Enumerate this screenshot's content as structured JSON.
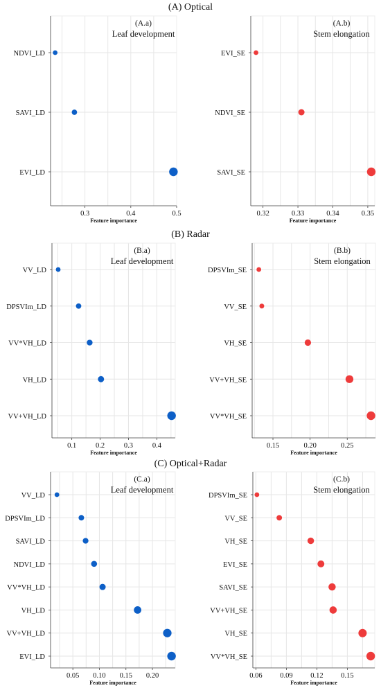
{
  "sections": [
    {
      "title": "(A) Optical"
    },
    {
      "title": "(B) Radar"
    },
    {
      "title": "(C) Optical+Radar"
    }
  ],
  "colors": {
    "leaf": "#0d5fc7",
    "stem": "#ee3b3b",
    "grid": "#e6e6e6"
  },
  "chart_data": [
    {
      "type": "scatter",
      "panel": "(A.a)",
      "title": "Leaf development",
      "xlabel": "Feature importance",
      "ylabel": "",
      "xlim": [
        0.225,
        0.5
      ],
      "xticks": [
        0.3,
        0.4,
        0.5
      ],
      "xtick_labels": [
        "0.3",
        "0.4",
        "0.5"
      ],
      "grid": true,
      "color": "leaf",
      "categories": [
        "NDVI_LD",
        "SAVI_LD",
        "EVI_LD"
      ],
      "values": [
        0.235,
        0.277,
        0.493
      ]
    },
    {
      "type": "scatter",
      "panel": "(A.b)",
      "title": "Stem elongation",
      "xlabel": "Feature importance",
      "ylabel": "",
      "xlim": [
        0.3165,
        0.352
      ],
      "xticks": [
        0.32,
        0.33,
        0.34,
        0.35
      ],
      "xtick_labels": [
        "0.32",
        "0.33",
        "0.34",
        "0.35"
      ],
      "grid": true,
      "color": "stem",
      "categories": [
        "EVI_SE",
        "NDVI_SE",
        "SAVI_SE"
      ],
      "values": [
        0.318,
        0.331,
        0.351
      ]
    },
    {
      "type": "scatter",
      "panel": "(B.a)",
      "title": "Leaf development",
      "xlabel": "Feature importance",
      "ylabel": "",
      "xlim": [
        0.03,
        0.465
      ],
      "xticks": [
        0.1,
        0.2,
        0.3,
        0.4
      ],
      "xtick_labels": [
        "0.1",
        "0.2",
        "0.3",
        "0.4"
      ],
      "grid": true,
      "color": "leaf",
      "categories": [
        "VV_LD",
        "DPSVIm_LD",
        "VV*VH_LD",
        "VH_LD",
        "VV+VH_LD"
      ],
      "values": [
        0.052,
        0.124,
        0.163,
        0.203,
        0.452
      ]
    },
    {
      "type": "scatter",
      "panel": "(B.b)",
      "title": "Stem elongation",
      "xlabel": "Feature importance",
      "ylabel": "",
      "xlim": [
        0.122,
        0.288
      ],
      "xticks": [
        0.15,
        0.2,
        0.25
      ],
      "xtick_labels": [
        "0.15",
        "0.20",
        "0.25"
      ],
      "grid": true,
      "color": "stem",
      "categories": [
        "DPSVIm_SE",
        "VV_SE",
        "VH_SE",
        "VV+VH_SE",
        "VV*VH_SE"
      ],
      "values": [
        0.131,
        0.135,
        0.197,
        0.253,
        0.282
      ]
    },
    {
      "type": "scatter",
      "panel": "(C.a)",
      "title": "Leaf development",
      "xlabel": "Feature importance",
      "ylabel": "",
      "xlim": [
        0.008,
        0.243
      ],
      "xticks": [
        0.05,
        0.1,
        0.15,
        0.2
      ],
      "xtick_labels": [
        "0.05",
        "0.10",
        "0.15",
        "0.20"
      ],
      "grid": true,
      "color": "leaf",
      "categories": [
        "VV_LD",
        "DPSVIm_LD",
        "SAVI_LD",
        "NDVI_LD",
        "VV*VH_LD",
        "VH_LD",
        "VV+VH_LD",
        "EVI_LD"
      ],
      "values": [
        0.02,
        0.066,
        0.074,
        0.09,
        0.106,
        0.172,
        0.228,
        0.236
      ]
    },
    {
      "type": "scatter",
      "panel": "(C.b)",
      "title": "Stem elongation",
      "xlabel": "Feature importance",
      "ylabel": "",
      "xlim": [
        0.057,
        0.177
      ],
      "xticks": [
        0.06,
        0.09,
        0.12,
        0.15
      ],
      "xtick_labels": [
        "0.06",
        "0.09",
        "0.12",
        "0.15"
      ],
      "grid": true,
      "color": "stem",
      "categories": [
        "DPSVIm_SE",
        "VV_SE",
        "VH_SE",
        "EVI_SE",
        "SAVI_SE",
        "VV+VH_SE",
        "VH_SE",
        "VV*VH_SE"
      ],
      "values": [
        0.061,
        0.083,
        0.114,
        0.124,
        0.135,
        0.136,
        0.165,
        0.173
      ]
    }
  ]
}
